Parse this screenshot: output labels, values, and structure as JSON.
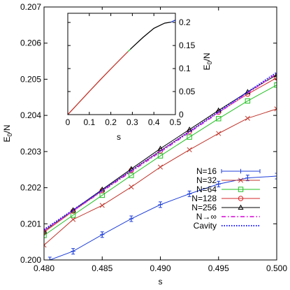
{
  "chart_data": [
    {
      "type": "line",
      "xlabel": "s",
      "ylabel": "E_0/N",
      "xlim": [
        0.48,
        0.5
      ],
      "ylim": [
        0.2,
        0.207
      ],
      "x_ticks": [
        "0.480",
        "0.485",
        "0.490",
        "0.495",
        "0.500"
      ],
      "y_ticks": [
        "0.200",
        "0.201",
        "0.202",
        "0.203",
        "0.204",
        "0.205",
        "0.206",
        "0.207"
      ],
      "legend_position": "bottom-right",
      "x": [
        0.4825,
        0.485,
        0.4875,
        0.49,
        0.4925,
        0.495,
        0.4975,
        0.5
      ],
      "series": [
        {
          "name": "N=16",
          "color": "#1f3fd9",
          "marker": "plus",
          "error_bars": true,
          "x": [
            0.4805,
            0.4825,
            0.485,
            0.4875,
            0.49,
            0.4925,
            0.495,
            0.4975,
            0.5
          ],
          "values": [
            0.2,
            0.20024,
            0.2007,
            0.20114,
            0.20153,
            0.20183,
            0.2021,
            0.20227,
            0.20232
          ]
        },
        {
          "name": "N=32",
          "color": "#c0362c",
          "marker": "x",
          "x": [
            0.48,
            0.4825,
            0.485,
            0.4875,
            0.49,
            0.4925,
            0.495,
            0.4975,
            0.5
          ],
          "values": [
            0.20041,
            0.20112,
            0.20151,
            0.20202,
            0.20257,
            0.20305,
            0.2035,
            0.20392,
            0.20418
          ]
        },
        {
          "name": "N=64",
          "color": "#22c022",
          "marker": "square",
          "x": [
            0.48,
            0.4825,
            0.485,
            0.4875,
            0.49,
            0.4925,
            0.495,
            0.4975,
            0.5
          ],
          "values": [
            0.20068,
            0.20124,
            0.20179,
            0.20234,
            0.20288,
            0.2034,
            0.20391,
            0.2044,
            0.20484
          ]
        },
        {
          "name": "N=128",
          "color": "#d62728",
          "marker": "circle",
          "x": [
            0.48,
            0.4825,
            0.485,
            0.4875,
            0.49,
            0.4925,
            0.495,
            0.4975,
            0.5
          ],
          "values": [
            0.20077,
            0.20135,
            0.20192,
            0.20248,
            0.20302,
            0.20355,
            0.20409,
            0.20459,
            0.20504
          ]
        },
        {
          "name": "N=256",
          "color": "#000000",
          "marker": "triangle",
          "x": [
            0.48,
            0.4825,
            0.485,
            0.4875,
            0.49,
            0.4925,
            0.495,
            0.4975,
            0.5
          ],
          "values": [
            0.2008,
            0.20138,
            0.20195,
            0.20252,
            0.20308,
            0.20361,
            0.20414,
            0.20465,
            0.20512
          ]
        },
        {
          "name": "N→∞",
          "color": "#e040e0",
          "marker": "none",
          "dash": "dash-dot",
          "x": [
            0.48,
            0.5
          ],
          "values": [
            0.20082,
            0.20516
          ]
        },
        {
          "name": "Cavity",
          "color": "#1a1aff",
          "marker": "none",
          "dash": "dotted",
          "x": [
            0.48,
            0.5
          ],
          "values": [
            0.20084,
            0.20519
          ]
        }
      ]
    },
    {
      "type": "line",
      "inset": true,
      "xlabel": "s",
      "ylabel": "E_0/N",
      "xlim": [
        0,
        0.5
      ],
      "ylim": [
        0,
        0.22
      ],
      "x_ticks": [
        "0",
        "0.1",
        "0.2",
        "0.3",
        "0.4",
        "0.5"
      ],
      "y_ticks": [
        "0",
        "0.05",
        "0.1",
        "0.15",
        "0.2"
      ],
      "series": [
        {
          "color": "#c0362c",
          "x": [
            0,
            0.05,
            0.1,
            0.15,
            0.2,
            0.25,
            0.28
          ],
          "values": [
            0.0,
            0.0252,
            0.0503,
            0.0751,
            0.0993,
            0.123,
            0.137
          ]
        },
        {
          "color": "#22c022",
          "x": [
            0.28,
            0.29
          ],
          "values": [
            0.137,
            0.1416
          ]
        },
        {
          "color": "#000000",
          "x": [
            0.29,
            0.3,
            0.35,
            0.4,
            0.45,
            0.48
          ],
          "values": [
            0.1416,
            0.1461,
            0.1678,
            0.1874,
            0.1986,
            0.2008
          ]
        },
        {
          "color": "#1f3fd9",
          "x": [
            0.48,
            0.5
          ],
          "values": [
            0.2008,
            0.2052
          ]
        }
      ]
    }
  ]
}
